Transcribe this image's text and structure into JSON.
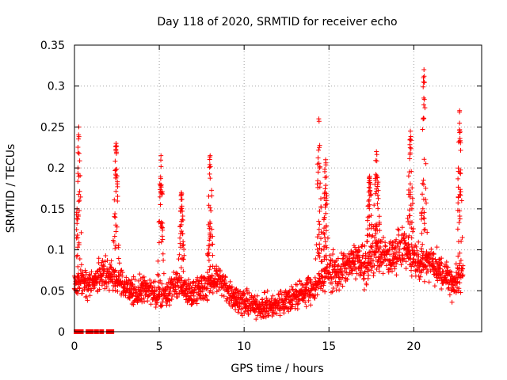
{
  "chart_data": {
    "type": "scatter",
    "title": "Day 118 of 2020, SRMTID for receiver echo",
    "xlabel": "GPS time / hours",
    "ylabel": "SRMTID / TECUs",
    "xlim": [
      0,
      24
    ],
    "ylim": [
      0,
      0.35
    ],
    "xticks": [
      0,
      5,
      10,
      15,
      20
    ],
    "xtick_labels": [
      "0",
      "5",
      "10",
      "15",
      "20"
    ],
    "yticks": [
      0,
      0.05,
      0.1,
      0.15,
      0.2,
      0.25,
      0.3,
      0.35
    ],
    "ytick_labels": [
      "0",
      "0.05",
      "0.1",
      "0.15",
      "0.2",
      "0.25",
      "0.3",
      "0.35"
    ],
    "grid": true,
    "marker": "+",
    "color": "#ff0000",
    "square_points": {
      "x": [
        0.1,
        0.2,
        0.4,
        0.8,
        1.0,
        1.3,
        1.6,
        2.0,
        2.2
      ],
      "y": [
        0,
        0,
        0,
        0,
        0,
        0,
        0,
        0,
        0
      ]
    },
    "baseline_y": [
      0.06,
      0.062,
      0.065,
      0.058,
      0.06,
      0.065,
      0.07,
      0.072,
      0.07,
      0.068,
      0.065,
      0.06,
      0.055,
      0.052,
      0.05,
      0.048,
      0.05,
      0.052,
      0.05,
      0.048,
      0.045,
      0.046,
      0.047,
      0.05,
      0.055,
      0.058,
      0.057,
      0.052,
      0.047,
      0.046,
      0.05,
      0.052,
      0.055,
      0.058,
      0.062,
      0.065,
      0.06,
      0.055,
      0.05,
      0.045,
      0.04,
      0.037,
      0.035,
      0.033,
      0.032,
      0.031,
      0.03,
      0.03,
      0.031,
      0.032,
      0.034,
      0.036,
      0.038,
      0.04,
      0.042,
      0.045,
      0.047,
      0.05,
      0.052,
      0.055,
      0.058,
      0.065,
      0.07,
      0.075,
      0.072,
      0.07,
      0.075,
      0.08,
      0.085,
      0.09,
      0.085,
      0.08,
      0.082,
      0.09,
      0.1,
      0.098,
      0.095,
      0.092,
      0.095,
      0.1,
      0.1,
      0.098,
      0.095,
      0.092,
      0.09,
      0.085,
      0.082,
      0.088,
      0.09,
      0.08,
      0.075,
      0.07,
      0.065,
      0.06,
      0.065,
      0.07,
      0.075
    ],
    "spikes": [
      {
        "x": 0.25,
        "top": 0.25
      },
      {
        "x": 2.45,
        "top": 0.23
      },
      {
        "x": 5.1,
        "top": 0.215
      },
      {
        "x": 6.3,
        "top": 0.17
      },
      {
        "x": 8.0,
        "top": 0.215
      },
      {
        "x": 14.4,
        "top": 0.26
      },
      {
        "x": 14.8,
        "top": 0.21
      },
      {
        "x": 17.4,
        "top": 0.19
      },
      {
        "x": 17.8,
        "top": 0.22
      },
      {
        "x": 19.8,
        "top": 0.245
      },
      {
        "x": 20.6,
        "top": 0.32
      },
      {
        "x": 22.7,
        "top": 0.27
      }
    ]
  }
}
